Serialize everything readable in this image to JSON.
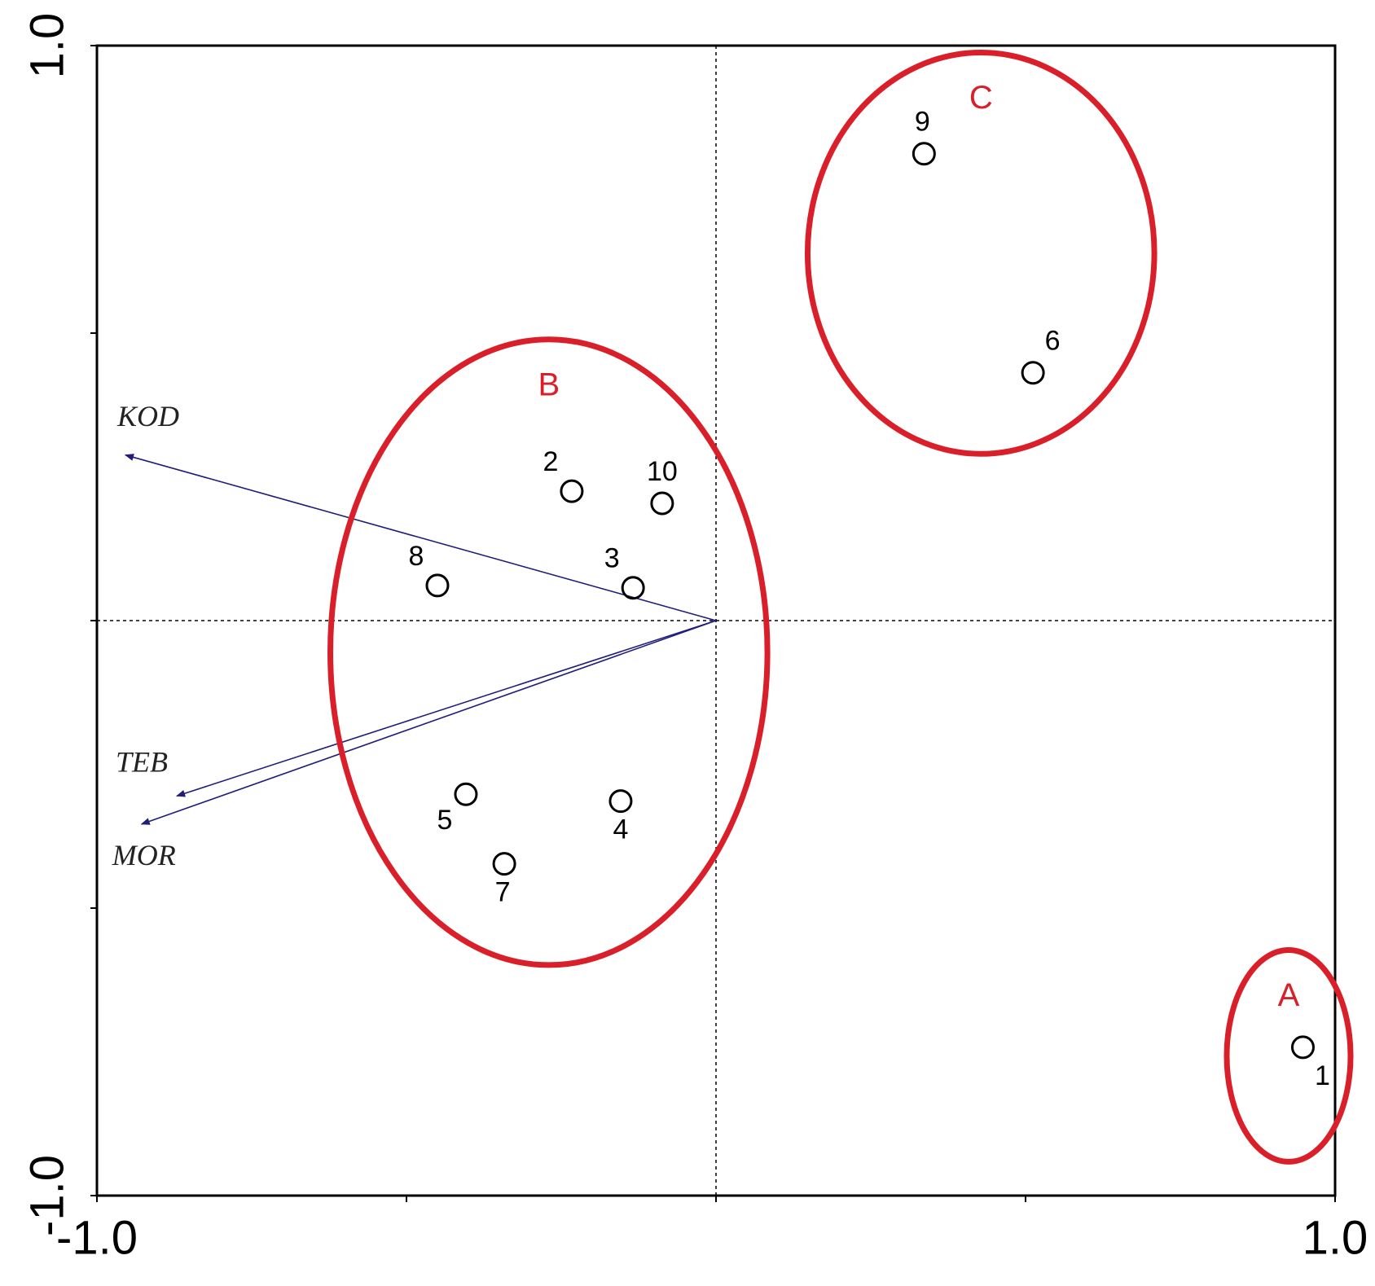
{
  "chart_data": {
    "type": "scatter",
    "points": {
      "labels": [
        "1",
        "2",
        "3",
        "4",
        "5",
        "6",
        "7",
        "8",
        "9",
        "10"
      ],
      "x": [
        0.948,
        -0.233,
        -0.134,
        -0.154,
        -0.404,
        0.512,
        -0.342,
        -0.45,
        0.336,
        -0.087
      ],
      "y": [
        -0.742,
        0.225,
        0.057,
        -0.314,
        -0.302,
        0.431,
        -0.423,
        0.061,
        0.812,
        0.204
      ],
      "color": "#000000"
    },
    "vectors": [
      {
        "name": "KOD",
        "x": -0.954,
        "y": 0.288
      },
      {
        "name": "TEB",
        "x": -0.871,
        "y": -0.305
      },
      {
        "name": "MOR",
        "x": -0.928,
        "y": -0.354
      }
    ],
    "vector_color": "#1f1f7a",
    "groups": [
      {
        "label": "A",
        "cx": 0.925,
        "cy": -0.757,
        "rx": 0.1,
        "ry": 0.184
      },
      {
        "label": "B",
        "cx": -0.27,
        "cy": -0.055,
        "rx": 0.353,
        "ry": 0.544
      },
      {
        "label": "C",
        "cx": 0.428,
        "cy": 0.639,
        "rx": 0.28,
        "ry": 0.349
      }
    ],
    "group_color": "#d9202a",
    "xlim": [
      -1,
      1
    ],
    "ylim": [
      -1,
      1
    ],
    "xticks": [
      {
        "value": -1,
        "label": "-1.0"
      },
      {
        "value": -0.5,
        "label": null
      },
      {
        "value": 0,
        "label": null
      },
      {
        "value": 0.5,
        "label": null
      },
      {
        "value": 1,
        "label": "1.0"
      }
    ],
    "yticks": [
      {
        "value": -1,
        "label": "-1.0"
      },
      {
        "value": -0.5,
        "label": null
      },
      {
        "value": 0,
        "label": null
      },
      {
        "value": 0.5,
        "label": null
      },
      {
        "value": 1,
        "label": "1.0"
      }
    ]
  }
}
